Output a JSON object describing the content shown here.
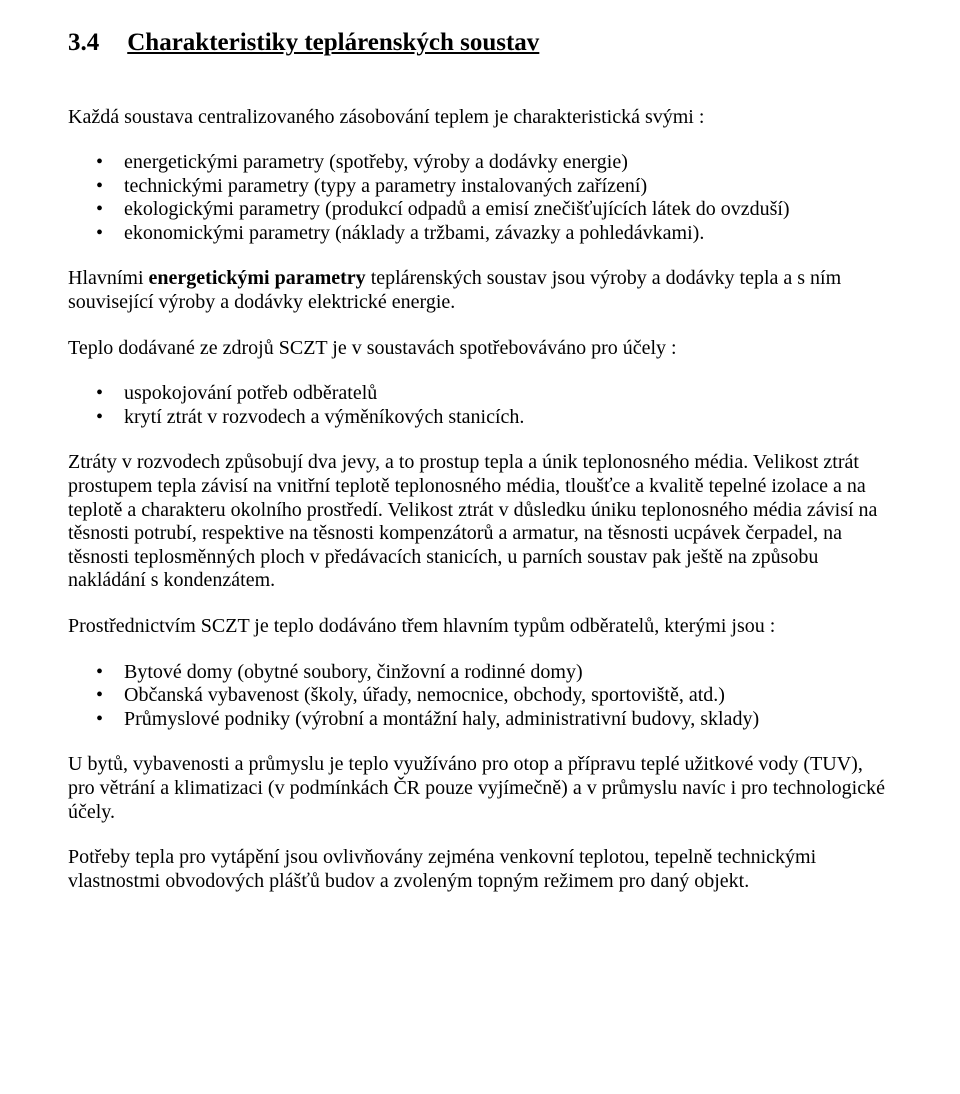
{
  "heading": {
    "number": "3.4",
    "title": "Charakteristiky teplárenských soustav"
  },
  "p1": "Každá soustava centralizovaného zásobování teplem je charakteristická svými :",
  "list1": {
    "items": [
      "energetickými parametry (spotřeby, výroby a dodávky energie)",
      "technickými parametry (typy a parametry instalovaných zařízení)",
      "ekologickými parametry (produkcí odpadů a emisí znečišťujících látek do ovzduší)",
      "ekonomickými parametry (náklady a tržbami, závazky a pohledávkami)."
    ]
  },
  "p2": {
    "prefix": "Hlavními ",
    "bold": "energetickými parametry",
    "suffix": " teplárenských soustav jsou výroby a dodávky tepla a s ním související výroby a dodávky elektrické energie."
  },
  "p3": "Teplo dodávané ze zdrojů SCZT je v soustavách spotřebováváno pro účely :",
  "list2": {
    "items": [
      "uspokojování potřeb odběratelů",
      "krytí ztrát v rozvodech a výměníkových stanicích."
    ]
  },
  "p4": "Ztráty v rozvodech způsobují dva jevy, a to prostup tepla a únik teplonosného média. Velikost ztrát prostupem tepla závisí na vnitřní teplotě teplonosného média, tloušťce a kvalitě tepelné izolace a na teplotě a charakteru okolního prostředí. Velikost ztrát v důsledku úniku teplonosného média závisí na těsnosti potrubí, respektive na těsnosti kompenzátorů a armatur, na těsnosti ucpávek čerpadel, na těsnosti teplosměnných ploch v předávacích stanicích, u parních soustav pak ještě na způsobu nakládání s kondenzátem.",
  "p5": "Prostřednictvím SCZT je teplo dodáváno třem hlavním typům odběratelů, kterými jsou :",
  "list3": {
    "items": [
      "Bytové domy (obytné soubory, činžovní a rodinné domy)",
      "Občanská vybavenost (školy, úřady, nemocnice, obchody, sportoviště, atd.)",
      "Průmyslové podniky (výrobní a montážní haly, administrativní budovy, sklady)"
    ]
  },
  "p6": "U bytů, vybavenosti a průmyslu je teplo využíváno pro otop a přípravu teplé užitkové vody (TUV), pro větrání a klimatizaci (v podmínkách ČR pouze vyjímečně) a v průmyslu navíc i pro technologické účely.",
  "p7": "Potřeby tepla pro vytápění jsou ovlivňovány zejména venkovní teplotou, tepelně technickými vlastnostmi obvodových plášťů budov a zvoleným topným režimem pro daný objekt."
}
